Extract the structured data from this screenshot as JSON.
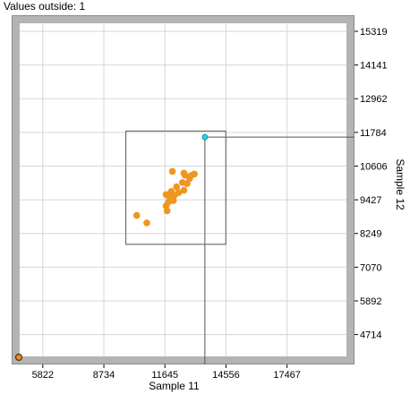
{
  "status": {
    "values_outside": "Values outside: 1"
  },
  "chart_data": {
    "type": "scatter",
    "title": "",
    "xlabel": "Sample 11",
    "ylabel": "Sample 12",
    "xlim": [
      4720,
      20300
    ],
    "ylim": [
      3950,
      15600
    ],
    "xticks": [
      5822,
      8734,
      11645,
      14556,
      17467
    ],
    "yticks": [
      4714,
      5892,
      7070,
      8249,
      9427,
      10606,
      11784,
      12962,
      14141,
      15319
    ],
    "grid": true,
    "selection_box": {
      "x_min": 9780,
      "x_max": 14550,
      "y_min": 7870,
      "y_max": 11830
    },
    "marker_point": {
      "x": 13550,
      "y": 11620,
      "color": "#22d3e6"
    },
    "outside_point": {
      "x": 4800,
      "y": 3950,
      "color": "#e8901f"
    },
    "series": [
      {
        "color": "#f0951f",
        "points": [
          {
            "x": 10300,
            "y": 8880
          },
          {
            "x": 10780,
            "y": 8620
          },
          {
            "x": 11750,
            "y": 9040
          },
          {
            "x": 11700,
            "y": 9210
          },
          {
            "x": 11820,
            "y": 9350
          },
          {
            "x": 11700,
            "y": 9610
          },
          {
            "x": 11950,
            "y": 9720
          },
          {
            "x": 12100,
            "y": 9580
          },
          {
            "x": 12300,
            "y": 9680
          },
          {
            "x": 12200,
            "y": 9880
          },
          {
            "x": 12550,
            "y": 9760
          },
          {
            "x": 12480,
            "y": 10030
          },
          {
            "x": 12700,
            "y": 9990
          },
          {
            "x": 12820,
            "y": 10170
          },
          {
            "x": 12600,
            "y": 10290
          },
          {
            "x": 12900,
            "y": 10280
          },
          {
            "x": 13050,
            "y": 10330
          },
          {
            "x": 12000,
            "y": 10420
          },
          {
            "x": 12550,
            "y": 10360
          },
          {
            "x": 11820,
            "y": 9560
          },
          {
            "x": 12050,
            "y": 9400
          }
        ]
      }
    ]
  },
  "colors": {
    "frame": "#b4b4b4",
    "grid": "#d6d6d6",
    "box": "#707070"
  }
}
